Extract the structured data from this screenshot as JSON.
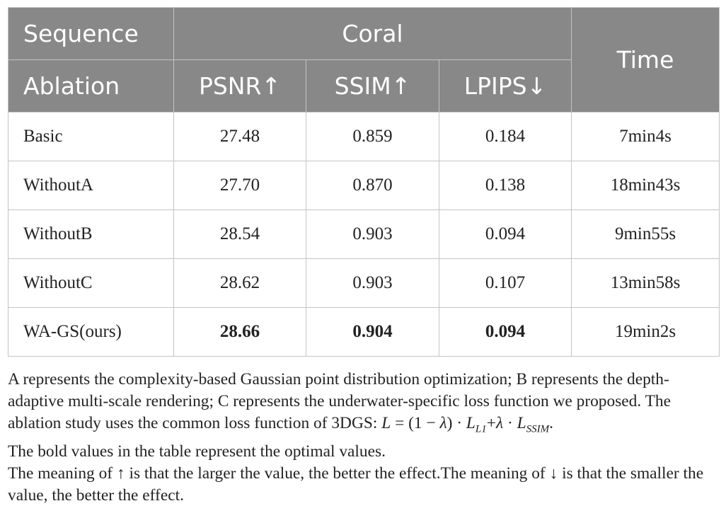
{
  "header": {
    "sequence_label": "Sequence",
    "group_label": "Coral",
    "time_label": "Time",
    "ablation_label": "Ablation",
    "metrics": [
      "PSNR↑",
      "SSIM↑",
      "LPIPS↓"
    ]
  },
  "rows": [
    {
      "name": "Basic",
      "psnr": "27.48",
      "ssim": "0.859",
      "lpips": "0.184",
      "time": "7min4s"
    },
    {
      "name": "WithoutA",
      "psnr": "27.70",
      "ssim": "0.870",
      "lpips": "0.138",
      "time": "18min43s"
    },
    {
      "name": "WithoutB",
      "psnr": "28.54",
      "ssim": "0.903",
      "lpips": "0.094",
      "time": "9min55s"
    },
    {
      "name": "WithoutC",
      "psnr": "28.62",
      "ssim": "0.903",
      "lpips": "0.107",
      "time": "13min58s"
    },
    {
      "name": "WA-GS(ours)",
      "psnr": "28.66",
      "ssim": "0.904",
      "lpips": "0.094",
      "time": "19min2s"
    }
  ],
  "notes": {
    "note1_text": "A represents the complexity-based Gaussian point distribution optimization; B represents the depth-adaptive multi-scale rendering; C represents the underwater-specific loss function we proposed. The ablation study uses the common loss function of 3DGS: ",
    "eq_L": "L",
    "eq_mid1": " = (1 − ",
    "eq_lambda1": "λ",
    "eq_mid2": ") · ",
    "eq_L1": "L",
    "eq_sub1": "L1",
    "eq_mid3": "+",
    "eq_lambda2": "λ",
    "eq_mid4": " · ",
    "eq_L2": "L",
    "eq_sub2": "SSIM",
    "eq_end": ".",
    "note2": "The bold values in the table represent the optimal values.",
    "note3": "The meaning of ↑ is that the larger the value, the better the effect.The meaning of ↓ is that the smaller the value, the better the effect."
  }
}
